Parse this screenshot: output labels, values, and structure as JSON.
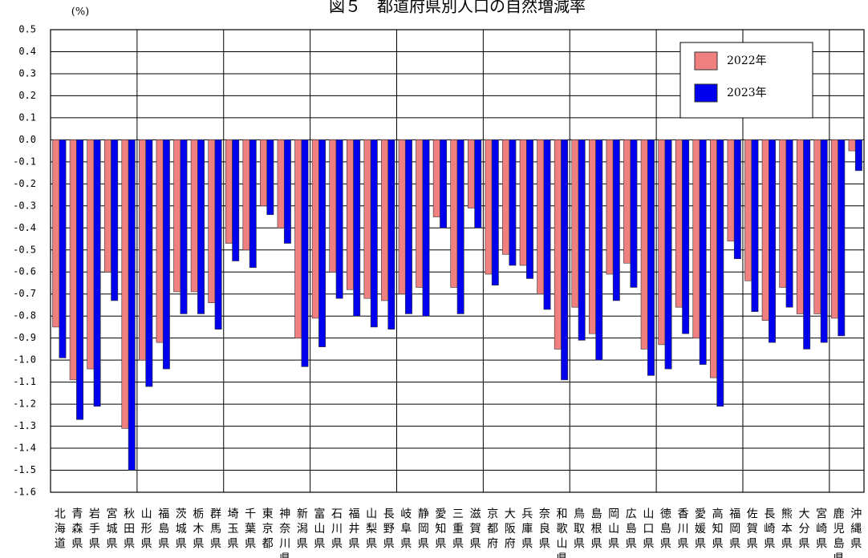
{
  "chart_data": {
    "type": "bar",
    "title": "図５　都道府県別人口の自然増減率",
    "y_unit": "(%)",
    "categories": [
      "北海道",
      "青森県",
      "岩手県",
      "宮城県",
      "秋田県",
      "山形県",
      "福島県",
      "茨城県",
      "栃木県",
      "群馬県",
      "埼玉県",
      "千葉県",
      "東京都",
      "神奈川県",
      "新潟県",
      "富山県",
      "石川県",
      "福井県",
      "山梨県",
      "長野県",
      "岐阜県",
      "静岡県",
      "愛知県",
      "三重県",
      "滋賀県",
      "京都府",
      "大阪府",
      "兵庫県",
      "奈良県",
      "和歌山県",
      "鳥取県",
      "島根県",
      "岡山県",
      "広島県",
      "山口県",
      "徳島県",
      "香川県",
      "愛媛県",
      "高知県",
      "福岡県",
      "佐賀県",
      "長崎県",
      "熊本県",
      "大分県",
      "宮崎県",
      "鹿児島県",
      "沖縄県"
    ],
    "series": [
      {
        "name": "2022年",
        "color": "#f08080",
        "values": [
          -0.85,
          -1.09,
          -1.04,
          -0.6,
          -1.31,
          -1.0,
          -0.92,
          -0.69,
          -0.69,
          -0.74,
          -0.47,
          -0.5,
          -0.3,
          -0.4,
          -0.9,
          -0.81,
          -0.6,
          -0.68,
          -0.72,
          -0.73,
          -0.7,
          -0.67,
          -0.35,
          -0.67,
          -0.31,
          -0.61,
          -0.52,
          -0.57,
          -0.7,
          -0.95,
          -0.76,
          -0.88,
          -0.61,
          -0.56,
          -0.95,
          -0.93,
          -0.76,
          -0.9,
          -1.08,
          -0.46,
          -0.64,
          -0.82,
          -0.67,
          -0.79,
          -0.79,
          -0.81,
          -0.05
        ]
      },
      {
        "name": "2023年",
        "color": "#0000ee",
        "values": [
          -0.99,
          -1.27,
          -1.21,
          -0.73,
          -1.5,
          -1.12,
          -1.04,
          -0.79,
          -0.79,
          -0.86,
          -0.55,
          -0.58,
          -0.34,
          -0.47,
          -1.03,
          -0.94,
          -0.72,
          -0.8,
          -0.85,
          -0.86,
          -0.79,
          -0.8,
          -0.4,
          -0.79,
          -0.4,
          -0.66,
          -0.57,
          -0.63,
          -0.77,
          -1.09,
          -0.91,
          -1.0,
          -0.73,
          -0.67,
          -1.07,
          -1.04,
          -0.88,
          -1.02,
          -1.21,
          -0.54,
          -0.78,
          -0.92,
          -0.76,
          -0.95,
          -0.92,
          -0.89,
          -0.14
        ]
      }
    ],
    "ylim": [
      -1.6,
      0.5
    ],
    "yticks": [
      0.5,
      0.4,
      0.3,
      0.2,
      0.1,
      {
        "value": 0,
        "label": "0.0"
      },
      -0.1,
      -0.2,
      -0.3,
      -0.4,
      -0.5,
      -0.6,
      -0.7,
      -0.8,
      -0.9,
      {
        "value": -1,
        "label": "-1.0"
      },
      -1.1,
      -1.2,
      -1.3,
      -1.4,
      -1.5,
      -1.6
    ],
    "grid": true,
    "legend": "upper right"
  }
}
